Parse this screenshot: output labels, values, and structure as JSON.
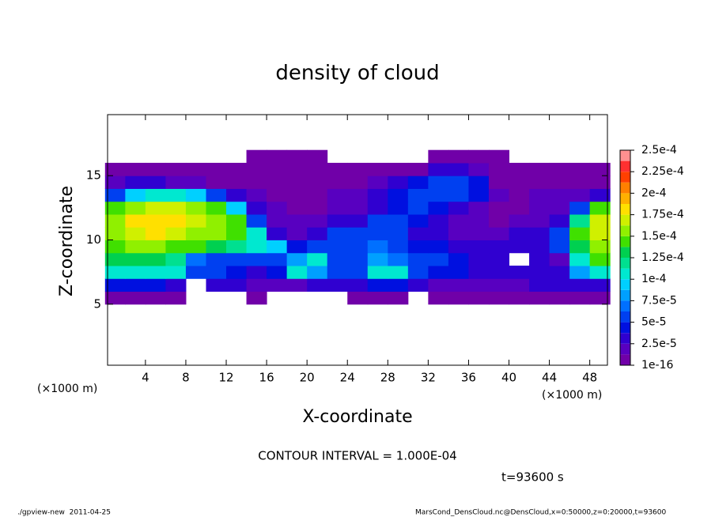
{
  "chart_data": {
    "type": "contour",
    "title": "density of cloud",
    "x_label": "X-coordinate",
    "y_label": "Z-coordinate",
    "x_unit": "(×1000 m)",
    "y_unit": "(×1000 m)",
    "contour_note": "CONTOUR INTERVAL = 1.000E-04",
    "time_label": "t=93600 s",
    "footer_left": "./gpview-new  2011-04-25",
    "footer_right": "MarsCond_DensCloud.nc@DensCloud,x=0:50000,z=0:20000,t=93600",
    "xlim": [
      0.25,
      49.75
    ],
    "ylim": [
      0.25,
      19.75
    ],
    "xticks": [
      4,
      8,
      12,
      16,
      20,
      24,
      28,
      32,
      36,
      40,
      44,
      48
    ],
    "yticks": [
      5,
      10,
      15
    ],
    "x": [
      1,
      3,
      5,
      7,
      9,
      11,
      13,
      15,
      17,
      19,
      21,
      23,
      25,
      27,
      29,
      31,
      33,
      35,
      37,
      39,
      41,
      43,
      45,
      47,
      49
    ],
    "z": [
      5.5,
      6.5,
      7.5,
      8.5,
      9.5,
      10.5,
      11.5,
      12.5,
      13.5,
      14.5,
      15.5,
      16.5
    ],
    "values": [
      [
        1e-05,
        1e-05,
        1e-05,
        1e-05,
        0,
        0,
        0,
        5e-06,
        0,
        0,
        0,
        0,
        5e-06,
        5e-06,
        5e-06,
        0,
        5e-06,
        5e-06,
        5e-06,
        5e-06,
        5e-06,
        5e-06,
        5e-06,
        1e-05,
        1e-05
      ],
      [
        4e-05,
        4e-05,
        4e-05,
        3e-05,
        0,
        3e-05,
        3e-05,
        2e-05,
        2e-05,
        2e-05,
        3e-05,
        3e-05,
        3e-05,
        4e-05,
        4e-05,
        3e-05,
        2e-05,
        2e-05,
        2e-05,
        2e-05,
        2e-05,
        3e-05,
        3e-05,
        3e-05,
        3e-05
      ],
      [
        0.00011,
        0.00011,
        0.0001,
        0.0001,
        6e-05,
        5e-05,
        4e-05,
        3e-05,
        4e-05,
        0.0001,
        8e-05,
        5e-05,
        6e-05,
        0.00011,
        0.00011,
        5e-05,
        4e-05,
        4e-05,
        3e-05,
        3e-05,
        3e-05,
        3e-05,
        3e-05,
        8e-05,
        0.0001
      ],
      [
        0.00013,
        0.00013,
        0.00013,
        0.00012,
        7e-05,
        6e-05,
        6e-05,
        5e-05,
        5e-05,
        8e-05,
        0.0001,
        6e-05,
        6e-05,
        8e-05,
        7e-05,
        5e-05,
        5e-05,
        4e-05,
        3e-05,
        3e-05,
        0,
        3e-05,
        2e-05,
        0.00011,
        0.00014
      ],
      [
        0.00014,
        0.00015,
        0.00015,
        0.00014,
        0.00014,
        0.00013,
        0.00012,
        0.00011,
        9e-05,
        4e-05,
        5e-05,
        6e-05,
        6e-05,
        7e-05,
        6e-05,
        4e-05,
        4e-05,
        3e-05,
        3e-05,
        3e-05,
        3e-05,
        3e-05,
        6e-05,
        0.00013,
        0.00016
      ],
      [
        0.00015,
        0.00017,
        0.00018,
        0.00017,
        0.00016,
        0.00015,
        0.00014,
        0.0001,
        3e-05,
        2e-05,
        3e-05,
        5e-05,
        5e-05,
        6e-05,
        5e-05,
        3e-05,
        3e-05,
        2e-05,
        2e-05,
        2e-05,
        3e-05,
        3e-05,
        5e-05,
        0.00014,
        0.00017
      ],
      [
        0.00016,
        0.00018,
        0.00018,
        0.00018,
        0.00017,
        0.00016,
        0.00014,
        6e-05,
        2e-05,
        1.5e-05,
        2e-05,
        3e-05,
        3e-05,
        5e-05,
        5e-05,
        4e-05,
        3e-05,
        2e-05,
        2e-05,
        1e-05,
        2e-05,
        2e-05,
        3e-05,
        0.00012,
        0.00017
      ],
      [
        0.00014,
        0.00016,
        0.00017,
        0.00017,
        0.00016,
        0.00014,
        9e-05,
        3e-05,
        1.5e-05,
        1e-05,
        1e-05,
        2e-05,
        2e-05,
        3e-05,
        4e-05,
        5e-05,
        4e-05,
        3e-05,
        2e-05,
        1e-05,
        1e-05,
        2e-05,
        2e-05,
        5e-05,
        0.00014
      ],
      [
        6e-05,
        9e-05,
        0.0001,
        0.0001,
        9e-05,
        6e-05,
        3e-05,
        1.5e-05,
        1e-05,
        1e-05,
        1e-05,
        1.5e-05,
        2e-05,
        3e-05,
        4e-05,
        5e-05,
        5e-05,
        5e-05,
        4e-05,
        2e-05,
        1e-05,
        2e-05,
        2e-05,
        2e-05,
        3e-05
      ],
      [
        2e-05,
        3e-05,
        3e-05,
        2e-05,
        2e-05,
        1e-05,
        1e-05,
        1e-05,
        1e-05,
        5e-06,
        1e-05,
        1e-05,
        1e-05,
        2e-05,
        3e-05,
        4e-05,
        5e-05,
        5e-05,
        4e-05,
        1e-05,
        1e-05,
        1e-05,
        1e-05,
        1e-05,
        1e-05
      ],
      [
        5e-06,
        5e-06,
        5e-06,
        5e-06,
        5e-06,
        5e-06,
        5e-06,
        5e-06,
        5e-06,
        5e-06,
        5e-06,
        5e-06,
        1e-05,
        1e-05,
        1e-05,
        1e-05,
        3e-05,
        3e-05,
        2e-05,
        5e-06,
        5e-06,
        5e-06,
        5e-06,
        5e-06,
        5e-06
      ],
      [
        0,
        0,
        0,
        0,
        0,
        0,
        0,
        5e-06,
        5e-06,
        5e-06,
        5e-06,
        0,
        0,
        0,
        0,
        0,
        5e-06,
        5e-06,
        5e-06,
        5e-06,
        0,
        0,
        0,
        0,
        0
      ]
    ],
    "levels": [
      1e-16,
      1.25e-05,
      2.5e-05,
      3.75e-05,
      5e-05,
      6.25e-05,
      7.5e-05,
      8.75e-05,
      0.0001,
      0.0001125,
      0.000125,
      0.0001375,
      0.00015,
      0.0001625,
      0.000175,
      0.0001875,
      0.0002,
      0.0002125,
      0.000225,
      0.0002375,
      0.00025
    ],
    "colors": [
      "#7000a8",
      "#5800c0",
      "#3000d0",
      "#0010e0",
      "#0040f0",
      "#0070ff",
      "#00a0ff",
      "#00d0ff",
      "#00e8d0",
      "#00e090",
      "#00d050",
      "#40e000",
      "#90f000",
      "#d0f000",
      "#ffe000",
      "#ffb000",
      "#ff8000",
      "#ff4000",
      "#ff3030",
      "#ff9090"
    ],
    "colorbar_ticks": [
      1e-16,
      {
        "value": 2.5e-05,
        "label": "2.5e-5"
      },
      {
        "value": 5e-05,
        "label": "5e-5"
      },
      {
        "value": 7.5e-05,
        "label": "7.5e-5"
      },
      {
        "value": 0.0001,
        "label": "1e-4"
      },
      {
        "value": 0.000125,
        "label": "1.25e-4"
      },
      {
        "value": 0.00015,
        "label": "1.5e-4"
      },
      {
        "value": 0.000175,
        "label": "1.75e-4"
      },
      {
        "value": 0.0002,
        "label": "2e-4"
      },
      {
        "value": 0.000225,
        "label": "2.25e-4"
      },
      {
        "value": 0.00025,
        "label": "2.5e-4"
      }
    ]
  }
}
